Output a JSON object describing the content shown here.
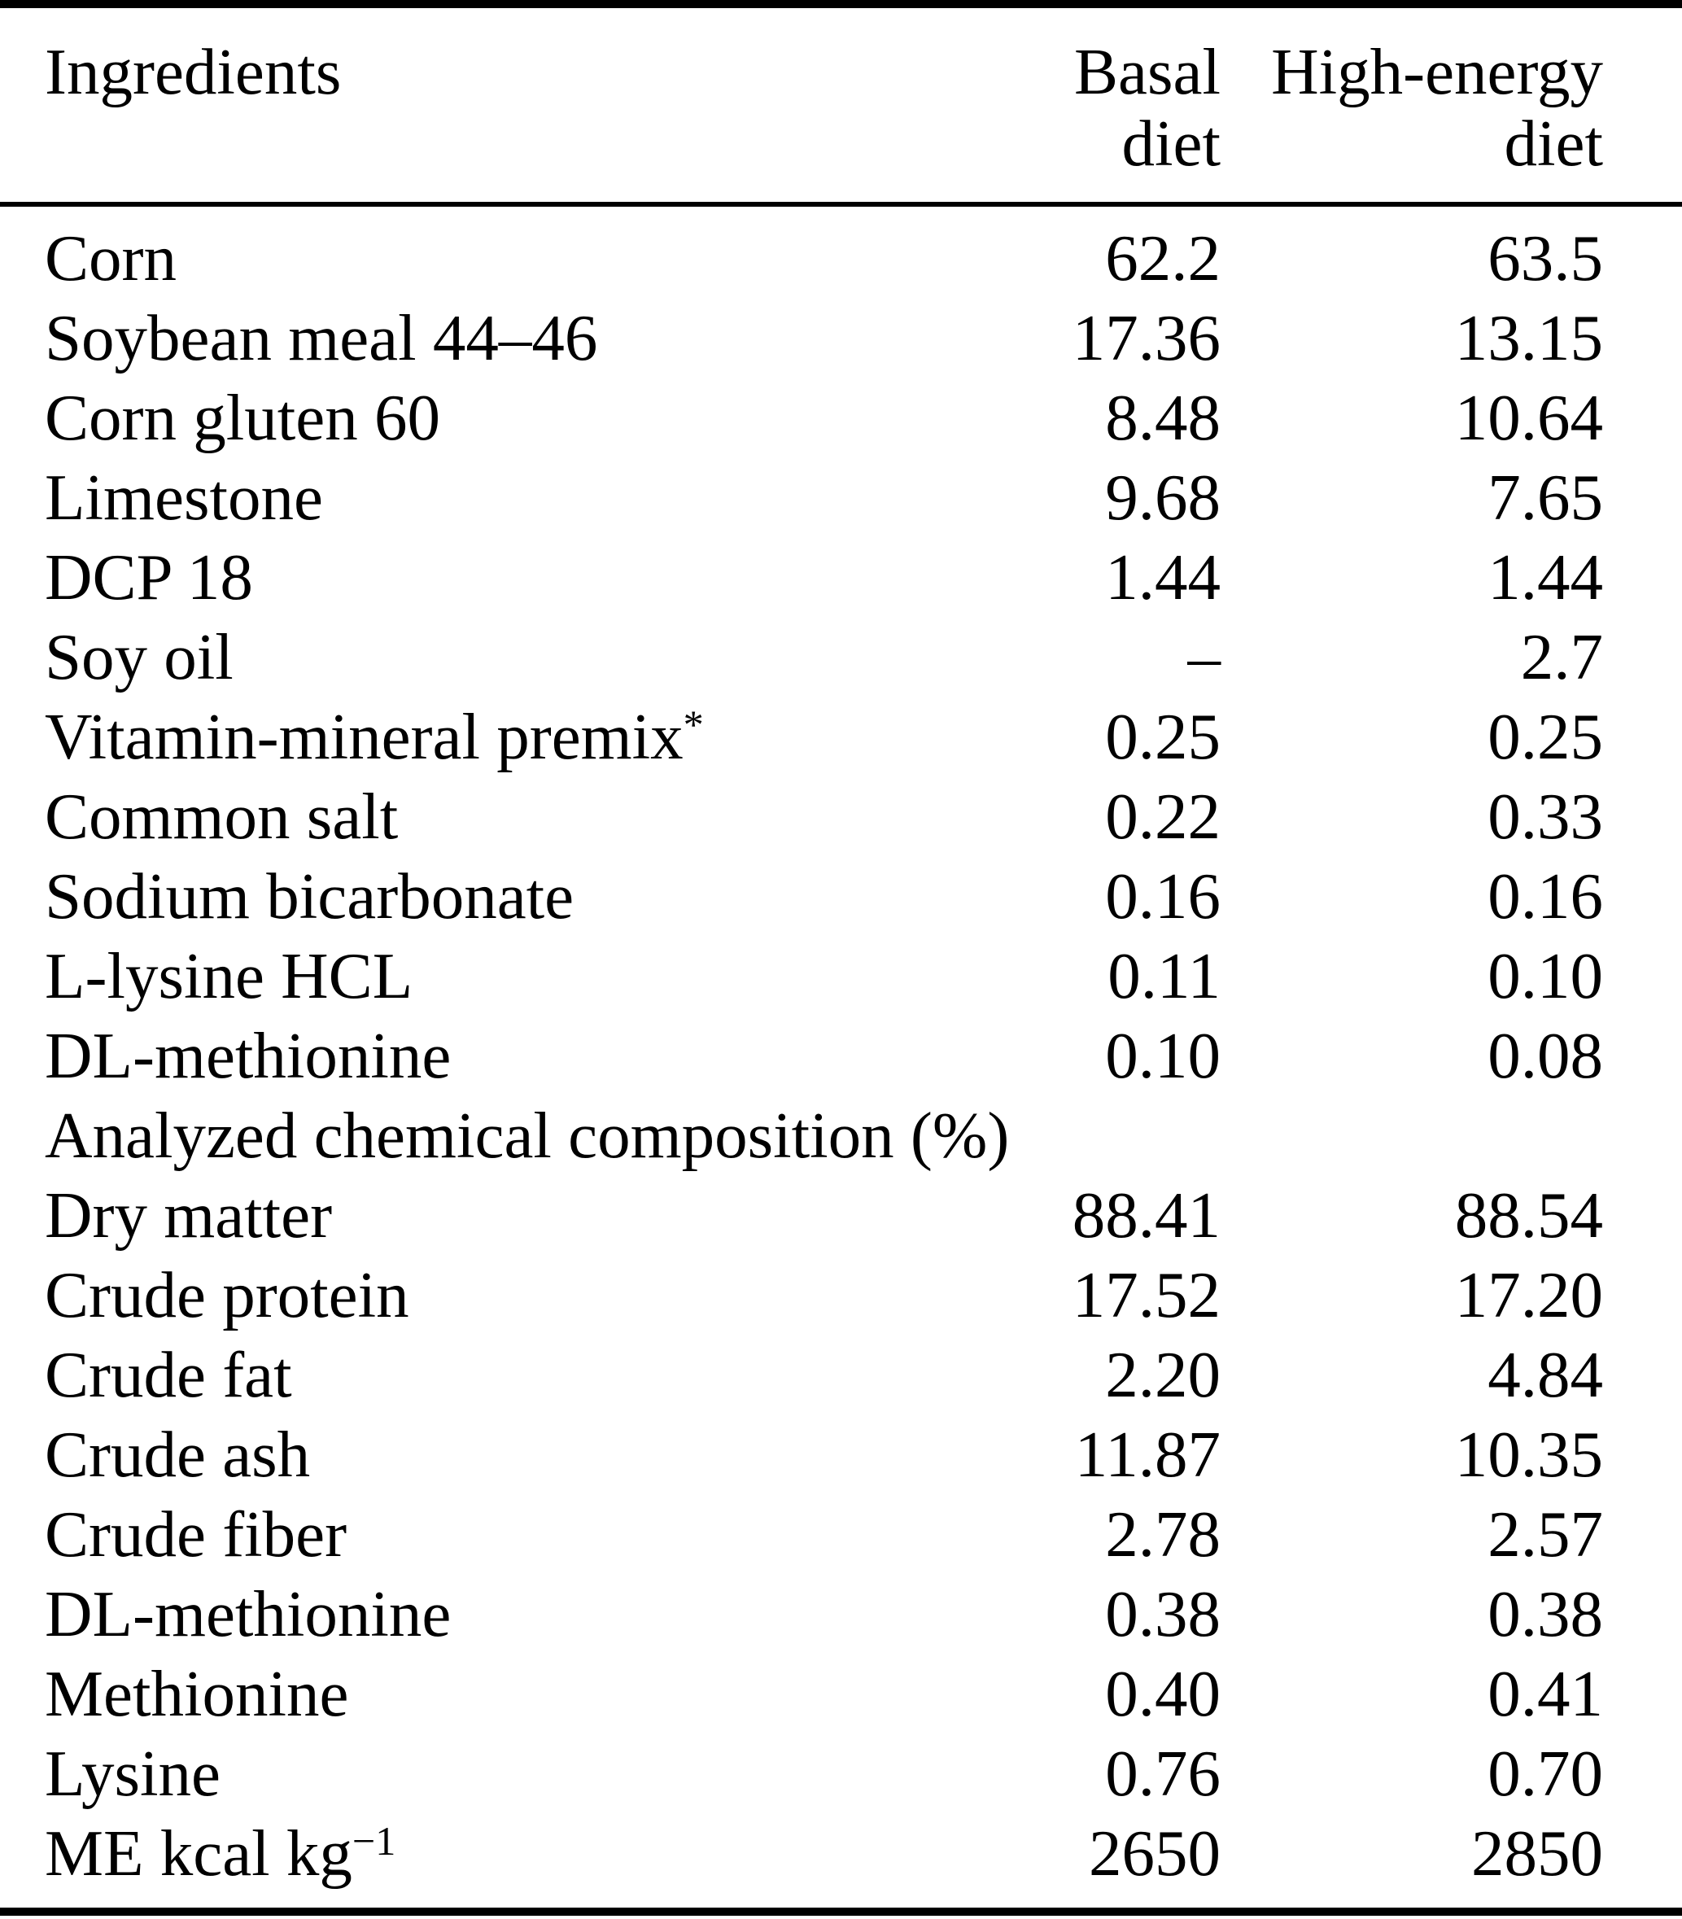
{
  "colors": {
    "text": "#000000",
    "background": "#ffffff",
    "rule": "#000000"
  },
  "table": {
    "header": {
      "ingredients": "Ingredients",
      "basal_line1": "Basal",
      "basal_line2": "diet",
      "high_line1": "High-energy",
      "high_line2": "diet"
    },
    "rows": [
      {
        "label": "Corn",
        "basal": "62.2",
        "high": "63.5"
      },
      {
        "label": "Soybean meal 44–46",
        "basal": "17.36",
        "high": "13.15"
      },
      {
        "label": "Corn gluten 60",
        "basal": "8.48",
        "high": "10.64"
      },
      {
        "label": "Limestone",
        "basal": "9.68",
        "high": "7.65"
      },
      {
        "label": "DCP 18",
        "basal": "1.44",
        "high": "1.44"
      },
      {
        "label": "Soy oil",
        "basal": "–",
        "high": "2.7"
      },
      {
        "label": "Vitamin-mineral premix",
        "label_sup": "*",
        "basal": "0.25",
        "high": "0.25"
      },
      {
        "label": "Common salt",
        "basal": "0.22",
        "high": "0.33"
      },
      {
        "label": "Sodium bicarbonate",
        "basal": "0.16",
        "high": "0.16"
      },
      {
        "label": "L-lysine HCL",
        "basal": "0.11",
        "high": "0.10"
      },
      {
        "label": "DL-methionine",
        "basal": "0.10",
        "high": "0.08"
      },
      {
        "label": "Analyzed chemical composition (%)",
        "section": true,
        "basal": "",
        "high": ""
      },
      {
        "label": "Dry matter",
        "basal": "88.41",
        "high": "88.54"
      },
      {
        "label": "Crude protein",
        "basal": "17.52",
        "high": "17.20"
      },
      {
        "label": "Crude fat",
        "basal": "2.20",
        "high": "4.84"
      },
      {
        "label": "Crude ash",
        "basal": "11.87",
        "high": "10.35"
      },
      {
        "label": "Crude fiber",
        "basal": "2.78",
        "high": "2.57"
      },
      {
        "label": "DL-methionine",
        "basal": "0.38",
        "high": "0.38"
      },
      {
        "label": "Methionine",
        "basal": "0.40",
        "high": "0.41"
      },
      {
        "label": "Lysine",
        "basal": "0.76",
        "high": "0.70"
      },
      {
        "label": "ME kcal kg",
        "label_sup": "−1",
        "basal": "2650",
        "high": "2850"
      }
    ]
  }
}
